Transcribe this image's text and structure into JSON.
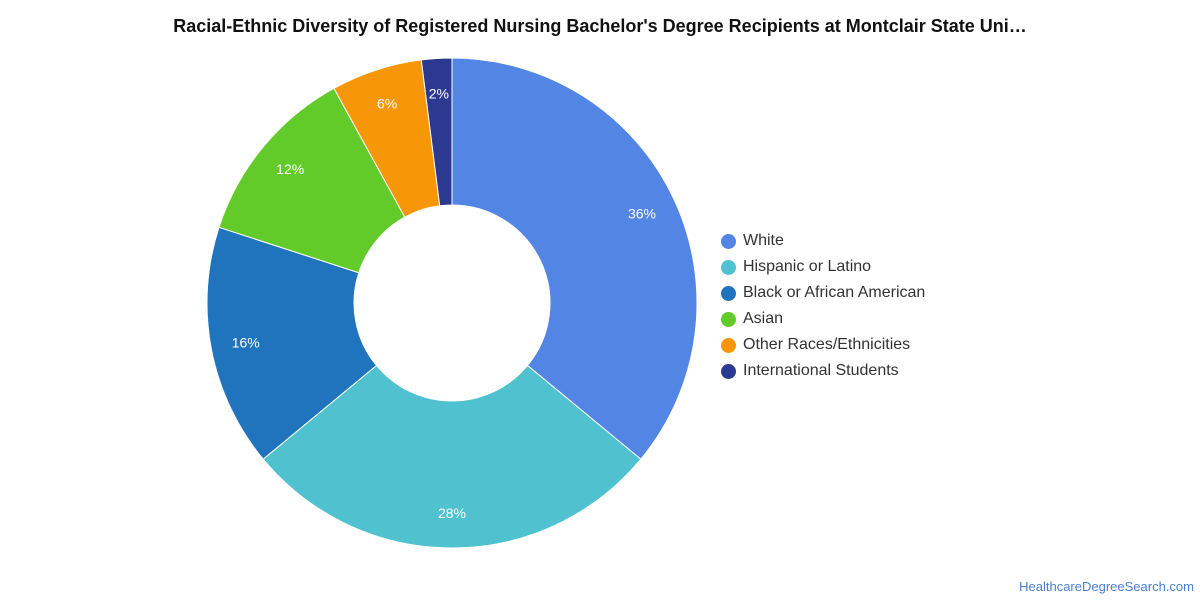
{
  "chart_data": {
    "type": "pie",
    "variant": "donut",
    "title": "Racial-Ethnic Diversity of Registered Nursing Bachelor's Degree Recipients at Montclair State Uni…",
    "unit": "%",
    "categories": [
      "White",
      "Hispanic or Latino",
      "Black or African American",
      "Asian",
      "Other Races/Ethnicities",
      "International Students"
    ],
    "values": [
      36,
      28,
      16,
      12,
      6,
      2
    ],
    "labels": [
      "36%",
      "28%",
      "16%",
      "12%",
      "6%",
      "2%"
    ],
    "colors": [
      "#5386e4",
      "#4fc1cf",
      "#1f74bd",
      "#62cb2a",
      "#f79708",
      "#2b3990"
    ],
    "start_angle_deg": 0,
    "direction": "clockwise",
    "legend_position": "right"
  },
  "footer": {
    "source": "HealthcareDegreeSearch.com"
  }
}
